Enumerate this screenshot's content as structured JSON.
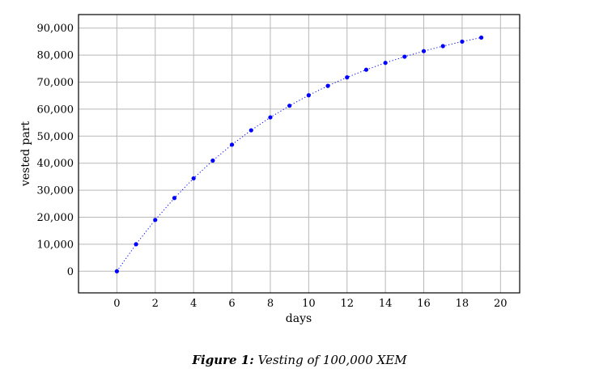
{
  "chart_data": {
    "type": "scatter",
    "title": "",
    "xlabel": "days",
    "ylabel": "vested part",
    "xlim": [
      -2,
      21
    ],
    "ylim": [
      -8000,
      95000
    ],
    "xticks": [
      0,
      2,
      4,
      6,
      8,
      10,
      12,
      14,
      16,
      18,
      20
    ],
    "yticks": [
      0,
      10000,
      20000,
      30000,
      40000,
      50000,
      60000,
      70000,
      80000,
      90000
    ],
    "ytick_labels": [
      "0",
      "10,000",
      "20,000",
      "30,000",
      "40,000",
      "50,000",
      "60,000",
      "70,000",
      "80,000",
      "90,000"
    ],
    "grid": true,
    "series": [
      {
        "color": "#0000ff",
        "line_style": "dotted",
        "marker": "circle",
        "x": [
          0,
          1,
          2,
          3,
          4,
          5,
          6,
          7,
          8,
          9,
          10,
          11,
          12,
          13,
          14,
          15,
          16,
          17,
          18,
          19
        ],
        "y": [
          0,
          10000,
          19000,
          27100,
          34390,
          40951,
          46856,
          52170,
          56953,
          61258,
          65132,
          68619,
          71757,
          74581,
          77123,
          79411,
          81470,
          83323,
          84991,
          86491
        ]
      }
    ]
  },
  "caption": {
    "label": "Figure 1:",
    "text": "Vesting of 100,000 XEM"
  }
}
